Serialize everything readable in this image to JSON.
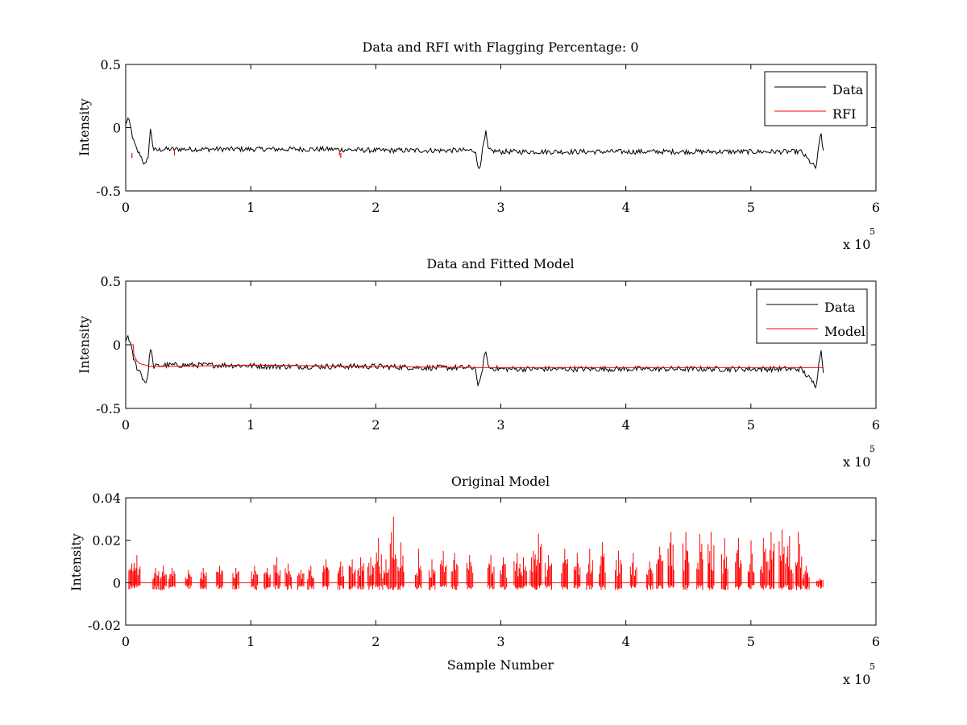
{
  "chart_data": [
    {
      "type": "line",
      "title": "Data and RFI with Flagging Percentage: 0",
      "xlabel": "",
      "ylabel": "Intensity",
      "xlim": [
        0,
        600000
      ],
      "ylim": [
        -0.5,
        0.5
      ],
      "xticks": [
        0,
        1,
        2,
        3,
        4,
        5,
        6
      ],
      "xtick_labels": [
        "0",
        "1",
        "2",
        "3",
        "4",
        "5",
        "6"
      ],
      "yticks": [
        -0.5,
        0,
        0.5
      ],
      "ytick_labels": [
        "-0.5",
        "0",
        "0.5"
      ],
      "x_exponent": {
        "base": "x 10",
        "power": "5"
      },
      "grid": false,
      "legend_position": "top-right",
      "series": [
        {
          "name": "Data",
          "color": "#000000",
          "style": "noisy-line",
          "noise": 0.02,
          "x": [
            0,
            1500,
            2500,
            4000,
            6000,
            9000,
            12000,
            14000,
            16000,
            18000,
            19000,
            20000,
            22000,
            24000,
            30000,
            50000,
            80000,
            120000,
            160000,
            200000,
            240000,
            280000,
            281000,
            283000,
            285000,
            288000,
            290000,
            300000,
            350000,
            400000,
            450000,
            500000,
            540000,
            550000,
            552000,
            554000,
            556000,
            558000
          ],
          "y": [
            0.02,
            0.08,
            0.05,
            0.0,
            -0.1,
            -0.18,
            -0.22,
            -0.27,
            -0.3,
            -0.22,
            -0.1,
            0.0,
            -0.17,
            -0.18,
            -0.17,
            -0.17,
            -0.17,
            -0.17,
            -0.17,
            -0.18,
            -0.18,
            -0.18,
            -0.3,
            -0.32,
            -0.2,
            -0.04,
            -0.18,
            -0.19,
            -0.19,
            -0.19,
            -0.19,
            -0.19,
            -0.19,
            -0.3,
            -0.32,
            -0.18,
            -0.03,
            -0.2
          ]
        },
        {
          "name": "RFI",
          "color": "#ff0000",
          "style": "spikes",
          "x": [
            5000,
            39000,
            171000,
            172000
          ],
          "y": [
            -0.22,
            -0.2,
            -0.2,
            -0.22
          ]
        }
      ]
    },
    {
      "type": "line",
      "title": "Data and Fitted Model",
      "xlabel": "",
      "ylabel": "Intensity",
      "xlim": [
        0,
        600000
      ],
      "ylim": [
        -0.5,
        0.5
      ],
      "xticks": [
        0,
        1,
        2,
        3,
        4,
        5,
        6
      ],
      "xtick_labels": [
        "0",
        "1",
        "2",
        "3",
        "4",
        "5",
        "6"
      ],
      "yticks": [
        -0.5,
        0,
        0.5
      ],
      "ytick_labels": [
        "-0.5",
        "0",
        "0.5"
      ],
      "x_exponent": {
        "base": "x 10",
        "power": "5"
      },
      "grid": false,
      "legend_position": "top-right",
      "series": [
        {
          "name": "Data",
          "color": "#000000",
          "style": "noisy-line",
          "noise": 0.022,
          "x": [
            0,
            1500,
            2500,
            4000,
            6000,
            9000,
            12000,
            14000,
            16000,
            18000,
            19000,
            20000,
            22000,
            24000,
            30000,
            50000,
            80000,
            120000,
            160000,
            200000,
            240000,
            280000,
            281000,
            283000,
            285000,
            288000,
            290000,
            300000,
            350000,
            400000,
            450000,
            500000,
            540000,
            550000,
            552000,
            554000,
            556000,
            558000
          ],
          "y": [
            0.02,
            0.08,
            0.05,
            0.0,
            -0.1,
            -0.18,
            -0.22,
            -0.27,
            -0.3,
            -0.22,
            -0.1,
            0.0,
            -0.17,
            -0.17,
            -0.16,
            -0.16,
            -0.16,
            -0.17,
            -0.17,
            -0.17,
            -0.18,
            -0.18,
            -0.3,
            -0.32,
            -0.2,
            -0.04,
            -0.18,
            -0.19,
            -0.19,
            -0.19,
            -0.19,
            -0.19,
            -0.19,
            -0.3,
            -0.32,
            -0.18,
            -0.03,
            -0.2
          ]
        },
        {
          "name": "Model",
          "color": "#ff0000",
          "style": "line",
          "x": [
            0,
            6000,
            6500,
            9000,
            12000,
            20000,
            30000,
            100000,
            200000,
            280000,
            290000,
            400000,
            500000,
            558000
          ],
          "y": [
            0.0,
            0.0,
            -0.08,
            -0.13,
            -0.15,
            -0.17,
            -0.17,
            -0.16,
            -0.17,
            -0.18,
            -0.18,
            -0.18,
            -0.18,
            -0.18
          ]
        }
      ]
    },
    {
      "type": "line",
      "title": "Original Model",
      "xlabel": "Sample Number",
      "ylabel": "Intensity",
      "xlim": [
        0,
        600000
      ],
      "ylim": [
        -0.02,
        0.04
      ],
      "xticks": [
        0,
        1,
        2,
        3,
        4,
        5,
        6
      ],
      "xtick_labels": [
        "0",
        "1",
        "2",
        "3",
        "4",
        "5",
        "6"
      ],
      "yticks": [
        -0.02,
        0,
        0.02,
        0.04
      ],
      "ytick_labels": [
        "-0.02",
        "0",
        "0.02",
        "0.04"
      ],
      "x_exponent": {
        "base": "x 10",
        "power": "5"
      },
      "grid": false,
      "legend_position": "none",
      "series": [
        {
          "name": "",
          "color": "#ff0000",
          "style": "spike-train",
          "x_start": 3000,
          "x_end": 557000,
          "baseline": 0,
          "peaks": [
            [
              5000,
              0.009
            ],
            [
              9000,
              0.013
            ],
            [
              24000,
              0.007
            ],
            [
              30000,
              0.008
            ],
            [
              37000,
              0.007
            ],
            [
              50000,
              0.006
            ],
            [
              62000,
              0.007
            ],
            [
              75000,
              0.008
            ],
            [
              88000,
              0.007
            ],
            [
              103000,
              0.008
            ],
            [
              113000,
              0.007
            ],
            [
              121000,
              0.012
            ],
            [
              130000,
              0.009
            ],
            [
              140000,
              0.006
            ],
            [
              148000,
              0.008
            ],
            [
              160000,
              0.011
            ],
            [
              172000,
              0.01
            ],
            [
              181000,
              0.011
            ],
            [
              188000,
              0.012
            ],
            [
              196000,
              0.012
            ],
            [
              202000,
              0.021
            ],
            [
              208000,
              0.011
            ],
            [
              214000,
              0.031
            ],
            [
              220000,
              0.019
            ],
            [
              234000,
              0.016
            ],
            [
              245000,
              0.011
            ],
            [
              254000,
              0.015
            ],
            [
              263000,
              0.014
            ],
            [
              275000,
              0.013
            ],
            [
              292000,
              0.013
            ],
            [
              302000,
              0.012
            ],
            [
              313000,
              0.014
            ],
            [
              318000,
              0.012
            ],
            [
              326000,
              0.015
            ],
            [
              330000,
              0.023
            ],
            [
              338000,
              0.013
            ],
            [
              351000,
              0.016
            ],
            [
              361000,
              0.014
            ],
            [
              371000,
              0.016
            ],
            [
              381000,
              0.019
            ],
            [
              394000,
              0.015
            ],
            [
              406000,
              0.014
            ],
            [
              419000,
              0.01
            ],
            [
              427000,
              0.017
            ],
            [
              436000,
              0.024
            ],
            [
              448000,
              0.024
            ],
            [
              459000,
              0.023
            ],
            [
              468000,
              0.024
            ],
            [
              479000,
              0.021
            ],
            [
              490000,
              0.021
            ],
            [
              500000,
              0.02
            ],
            [
              510000,
              0.021
            ],
            [
              516000,
              0.024
            ],
            [
              525000,
              0.025
            ],
            [
              531000,
              0.022
            ],
            [
              538000,
              0.024
            ],
            [
              544000,
              0.008
            ],
            [
              555000,
              0.002
            ]
          ]
        }
      ]
    }
  ]
}
